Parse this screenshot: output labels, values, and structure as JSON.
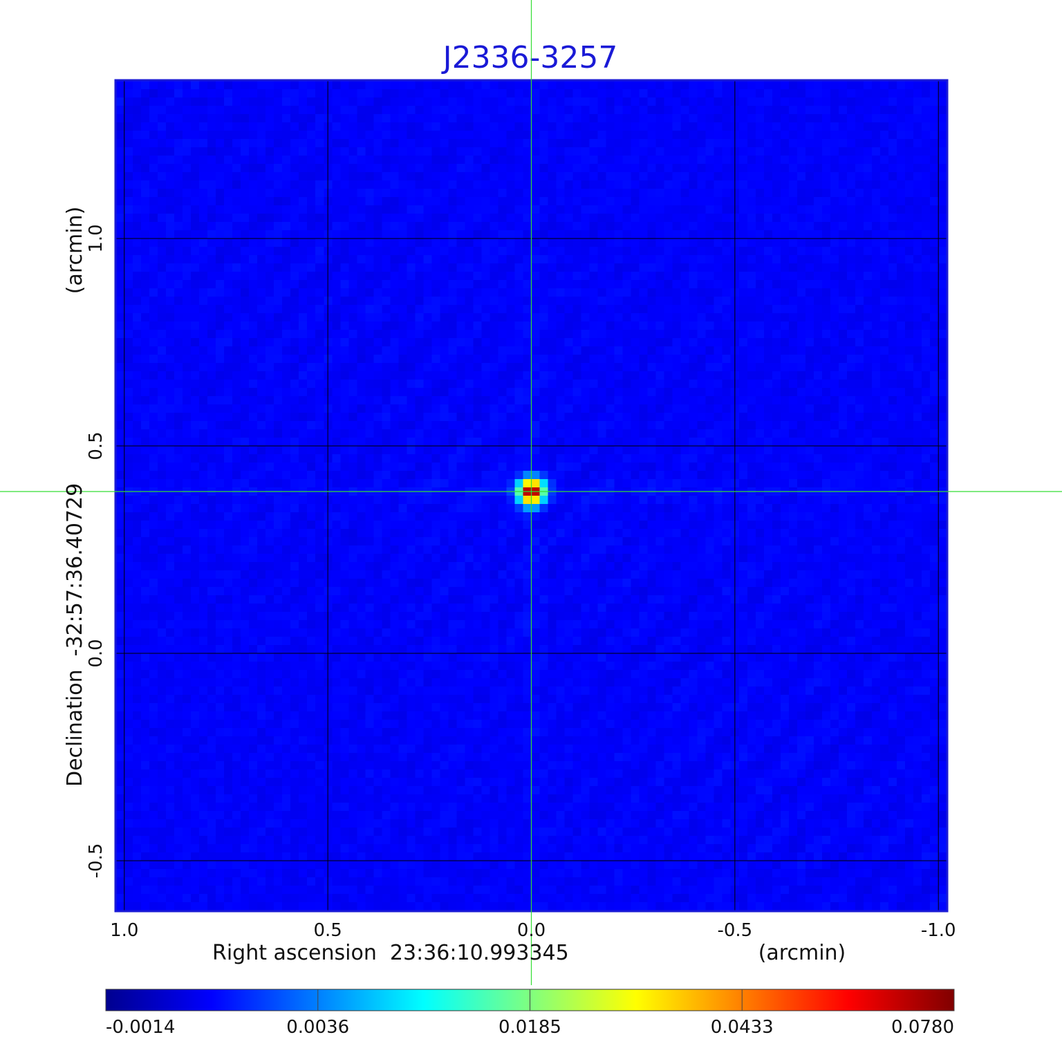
{
  "chart_data": {
    "type": "heatmap",
    "title": "J2336-3257",
    "xlabel": "Right ascension  23:36:10.993345",
    "xunit": "(arcmin)",
    "ylabel": "Declination  -32:57:36.40729",
    "yunit": "(arcmin)",
    "xlim": [
      1.02,
      -1.02
    ],
    "ylim": [
      -0.62,
      1.38
    ],
    "x_ticks": [
      1.0,
      0.5,
      0.0,
      -0.5,
      -1.0
    ],
    "x_tick_labels": [
      "1.0",
      "0.5",
      "0.0",
      "-0.5",
      "-1.0"
    ],
    "y_ticks": [
      -0.5,
      0.0,
      0.5,
      1.0
    ],
    "y_tick_labels": [
      "-0.5",
      "0.0",
      "0.5",
      "1.0"
    ],
    "grid": true,
    "grid_color": "#000000",
    "crosshair": {
      "x": 0.0,
      "y": 0.39,
      "color": "#33dd33"
    },
    "source": {
      "x": 0.0,
      "y": 0.39,
      "peak": 0.078
    },
    "background_level": 0.0005,
    "colorbar": {
      "orientation": "horizontal",
      "colormap": "jet",
      "min": -0.0014,
      "max": 0.078,
      "ticks": [
        -0.0014,
        0.0036,
        0.0185,
        0.0433,
        0.078
      ],
      "tick_labels": [
        "-0.0014",
        "0.0036",
        "0.0185",
        "0.0433",
        "0.0780"
      ]
    }
  }
}
